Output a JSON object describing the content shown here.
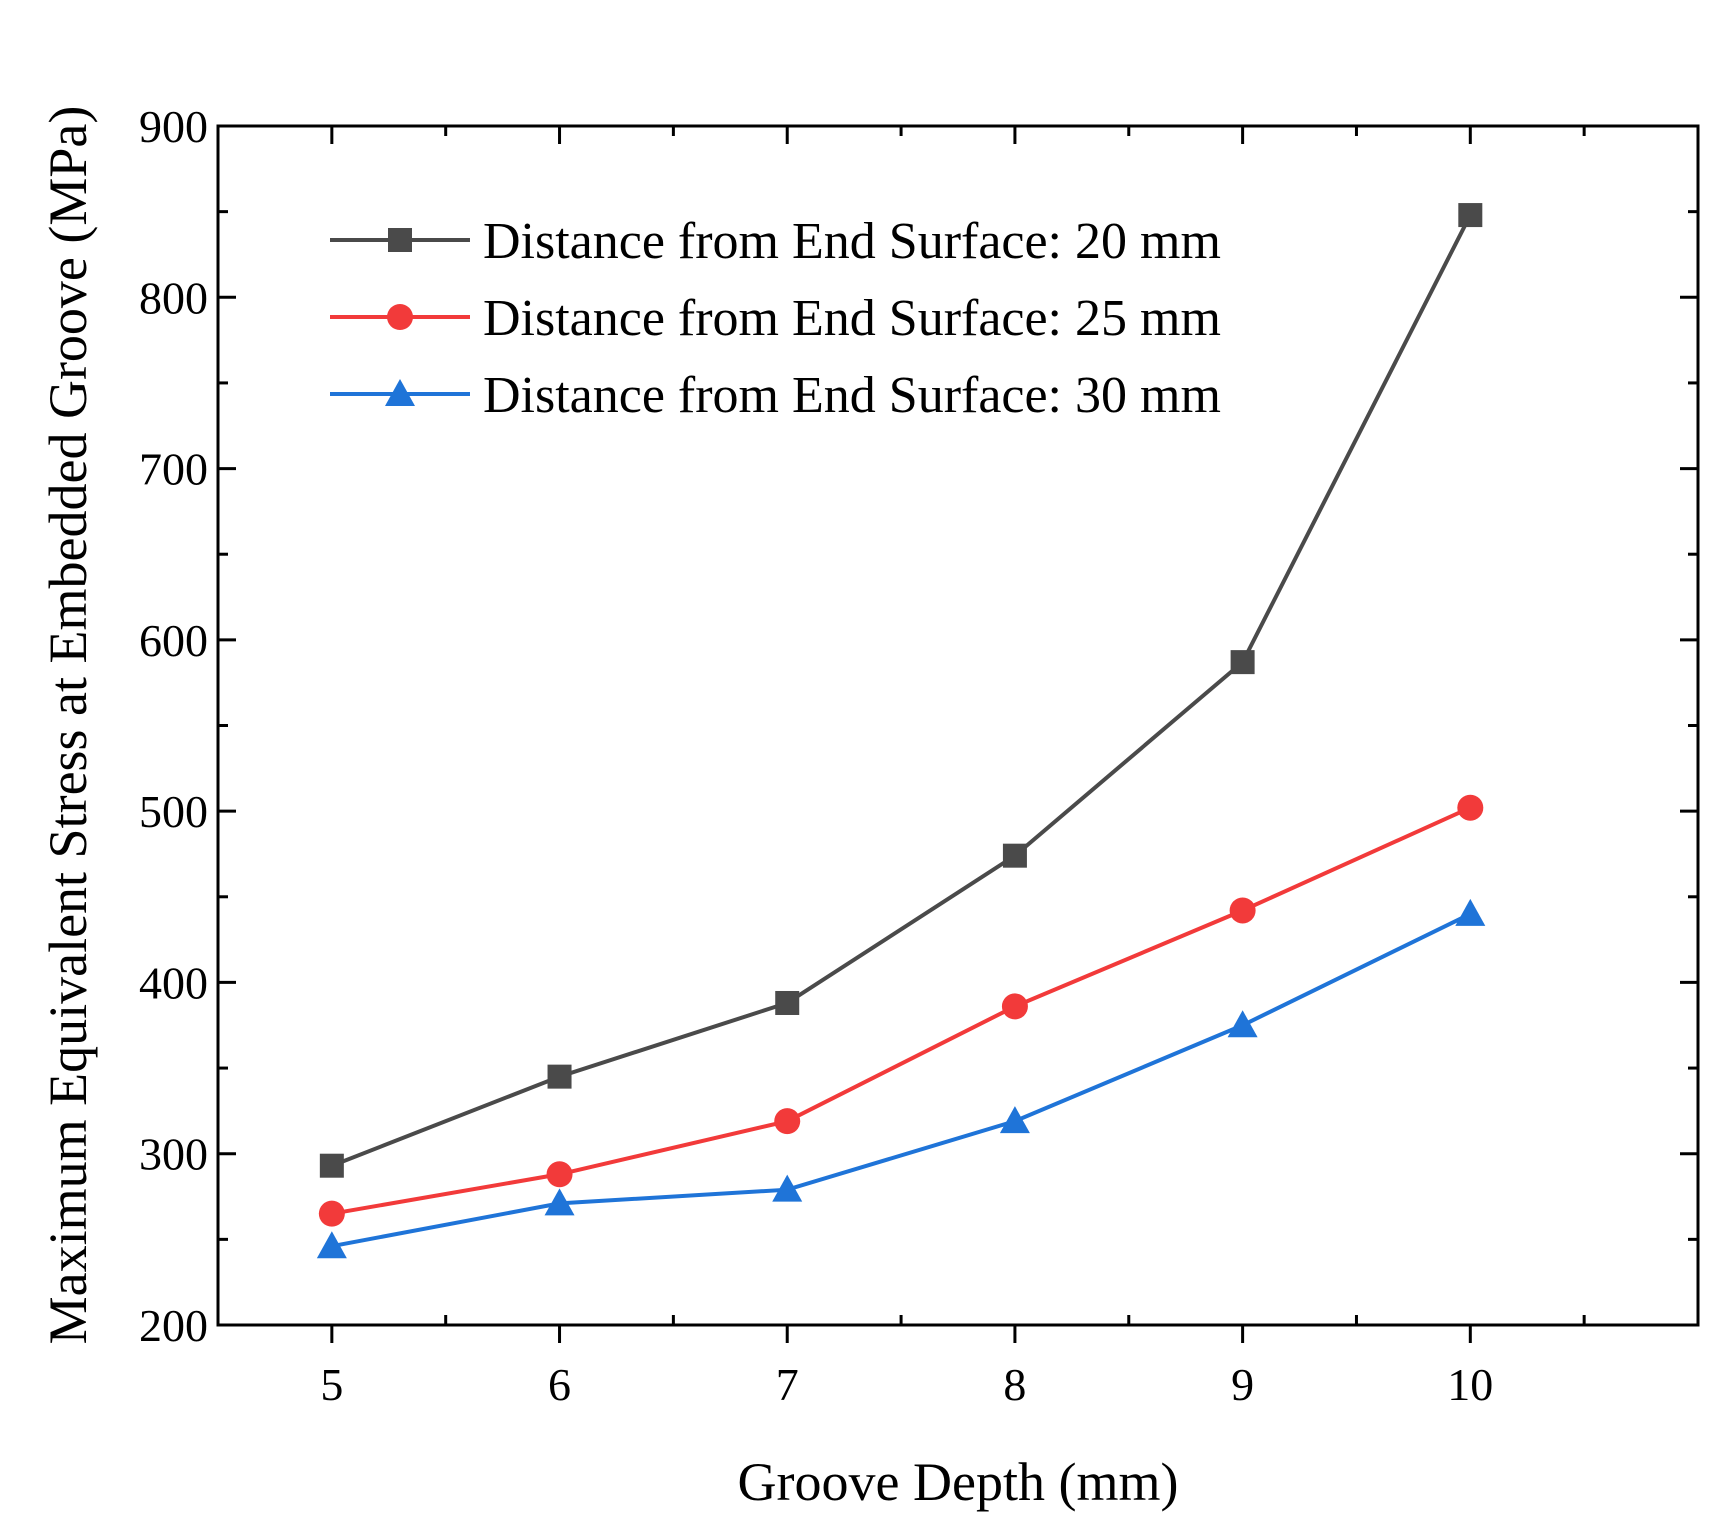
{
  "chart_data": {
    "type": "line",
    "title": "",
    "xlabel": "Groove Depth (mm)",
    "ylabel": "Maximum Equivalent Stress at Embedded Groove (MPa)",
    "x": [
      5,
      6,
      7,
      8,
      9,
      10
    ],
    "xlim": [
      4.5,
      11
    ],
    "ylim": [
      200,
      900
    ],
    "xticks": [
      "5",
      "6",
      "7",
      "8",
      "9",
      "10"
    ],
    "yticks": [
      "200",
      "300",
      "400",
      "500",
      "600",
      "700",
      "800",
      "900"
    ],
    "grid": false,
    "legend_position": "top-left",
    "series": [
      {
        "name": "Distance from End Surface: 20 mm",
        "color": "#4a4a4a",
        "marker": "square",
        "values": [
          293,
          345,
          388,
          474,
          587,
          848
        ]
      },
      {
        "name": "Distance from End Surface: 25 mm",
        "color": "#f23a3a",
        "marker": "circle",
        "values": [
          265,
          288,
          319,
          386,
          442,
          502
        ]
      },
      {
        "name": "Distance from End Surface: 30 mm",
        "color": "#1f74d8",
        "marker": "triangle",
        "values": [
          246,
          271,
          279,
          319,
          375,
          440
        ]
      }
    ]
  }
}
